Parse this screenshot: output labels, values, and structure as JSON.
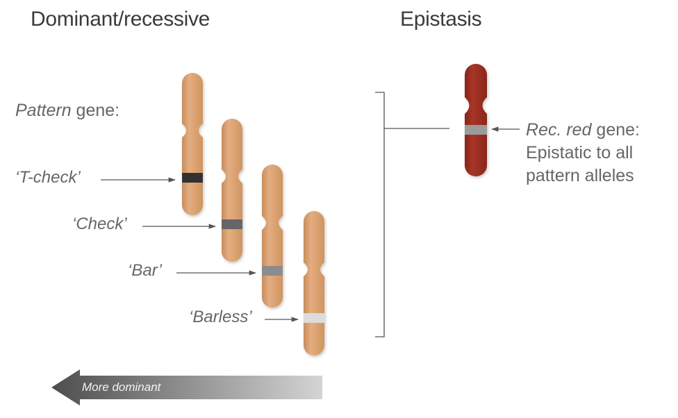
{
  "headings": {
    "left": "Dominant/recessive",
    "right": "Epistasis"
  },
  "pattern_gene": {
    "italic": "Pattern",
    "rest": " gene:"
  },
  "alleles": [
    {
      "name": "‘T-check’",
      "band_color": "#333333",
      "rank": 1
    },
    {
      "name": "‘Check’",
      "band_color": "#666666",
      "rank": 2
    },
    {
      "name": "‘Bar’",
      "band_color": "#8c8c8c",
      "rank": 3
    },
    {
      "name": "‘Barless’",
      "band_color": "#dcdcdc",
      "rank": 4
    }
  ],
  "rec_red": {
    "italic": "Rec. red",
    "rest": " gene:",
    "line2": "Epistatic to all",
    "line3": "pattern alleles",
    "band_color": "#9b9b9b"
  },
  "dominance_arrow": {
    "label": "More dominant",
    "direction": "left"
  },
  "colors": {
    "chromosome": "#dba275",
    "chromosome_red": "#9c2f22",
    "text": "#666666",
    "heading": "#3a3a3a",
    "line": "#555555"
  }
}
